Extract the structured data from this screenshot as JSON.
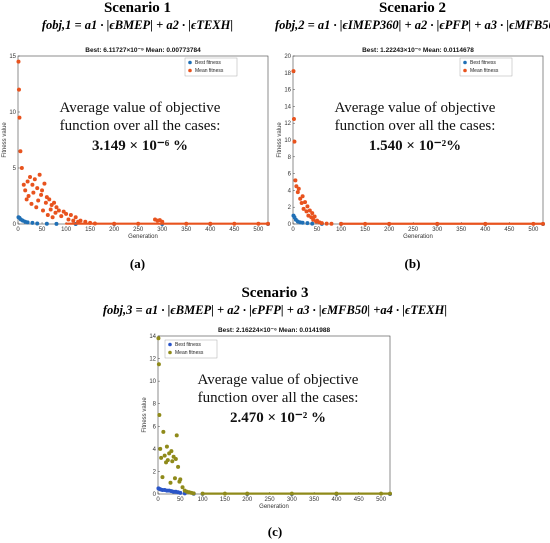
{
  "panels": [
    {
      "scenario": "Scenario 1",
      "formula": "fobj,1 = a1 · |ϵBMEP| + a2 · |ϵTEXH|",
      "caption": "(a)",
      "plot_title": "Best: 6.11727×10⁻⁹ Mean: 0.00773784",
      "annotation_line1": "Average value of objective",
      "annotation_line2": "function over all the cases:",
      "annotation_value": "3.149 × 10⁻⁶ %"
    },
    {
      "scenario": "Scenario 2",
      "formula": "fobj,2 = a1 · |ϵIMEP360| + a2 · |ϵPFP| + a3 · |ϵMFB50|",
      "caption": "(b)",
      "plot_title": "Best: 1.22243×10⁻⁶ Mean: 0.0114678",
      "annotation_line1": "Average value of objective",
      "annotation_line2": "function over all the cases:",
      "annotation_value": "1.540 × 10⁻²%"
    },
    {
      "scenario": "Scenario 3",
      "formula": "fobj,3 = a1 · |ϵBMEP| + a2 · |ϵPFP| + a3 · |ϵMFB50| +a4 · |ϵTEXH|",
      "caption": "(c)",
      "plot_title": "Best: 2.16224×10⁻⁶ Mean: 0.0141988",
      "annotation_line1": "Average value of objective",
      "annotation_line2": "function over all the cases:",
      "annotation_value": "2.470 × 10⁻² %"
    }
  ],
  "chart_data": [
    {
      "type": "scatter",
      "xlabel": "Generation",
      "ylabel": "Fitness value",
      "xlim": [
        0,
        520
      ],
      "ylim": [
        0,
        15
      ],
      "xticks": [
        0,
        50,
        100,
        150,
        200,
        250,
        300,
        350,
        400,
        450,
        500
      ],
      "yticks": [
        0,
        5,
        10,
        15
      ],
      "legend_position": "top-right",
      "series": [
        {
          "name": "Best fitness",
          "color": "#1f6fb5",
          "x": [
            1,
            3,
            6,
            10,
            15,
            20,
            30,
            40,
            60,
            80,
            120,
            200,
            300,
            400,
            520
          ],
          "y": [
            0.6,
            0.55,
            0.4,
            0.3,
            0.2,
            0.15,
            0.1,
            0.05,
            0.02,
            0.01,
            0.005,
            0.0,
            0.0,
            0.0,
            0.0
          ]
        },
        {
          "name": "Mean fitness",
          "color": "#e8531e",
          "x": [
            1,
            2,
            3,
            5,
            8,
            12,
            15,
            18,
            20,
            22,
            25,
            28,
            30,
            32,
            35,
            38,
            40,
            42,
            45,
            48,
            50,
            52,
            55,
            58,
            60,
            62,
            65,
            68,
            70,
            72,
            75,
            78,
            80,
            85,
            90,
            95,
            100,
            105,
            110,
            115,
            120,
            125,
            130,
            140,
            150,
            160,
            200,
            250,
            285,
            290,
            295,
            300,
            350,
            400,
            450,
            500,
            520
          ],
          "y": [
            14.5,
            12.0,
            9.5,
            6.5,
            5.0,
            3.5,
            3.0,
            2.2,
            3.8,
            2.5,
            4.2,
            1.8,
            3.5,
            2.8,
            4.0,
            1.5,
            3.2,
            2.1,
            4.4,
            2.6,
            3.0,
            1.2,
            3.6,
            1.9,
            2.4,
            0.8,
            2.2,
            1.3,
            1.7,
            0.6,
            1.9,
            1.0,
            1.5,
            1.2,
            0.7,
            1.1,
            0.9,
            0.4,
            0.8,
            0.3,
            0.6,
            0.2,
            0.3,
            0.2,
            0.1,
            0.05,
            0.02,
            0.02,
            0.4,
            0.3,
            0.35,
            0.2,
            0.02,
            0.02,
            0.02,
            0.02,
            0.02
          ]
        }
      ]
    },
    {
      "type": "scatter",
      "xlabel": "Generation",
      "ylabel": "Fitness value",
      "xlim": [
        0,
        520
      ],
      "ylim": [
        0,
        20
      ],
      "xticks": [
        0,
        50,
        100,
        150,
        200,
        250,
        300,
        350,
        400,
        450,
        500
      ],
      "yticks": [
        0,
        2,
        4,
        6,
        8,
        10,
        12,
        14,
        16,
        18,
        20
      ],
      "legend_position": "top-right",
      "series": [
        {
          "name": "Best fitness",
          "color": "#1f6fb5",
          "x": [
            1,
            3,
            6,
            10,
            15,
            20,
            30,
            40,
            60,
            100,
            200,
            300,
            400,
            520
          ],
          "y": [
            1.0,
            0.8,
            0.5,
            0.3,
            0.2,
            0.15,
            0.1,
            0.05,
            0.02,
            0.01,
            0.0,
            0.0,
            0.0,
            0.0
          ]
        },
        {
          "name": "Mean fitness",
          "color": "#e8531e",
          "x": [
            1,
            2,
            3,
            5,
            7,
            10,
            12,
            15,
            18,
            20,
            22,
            25,
            28,
            30,
            32,
            35,
            38,
            40,
            42,
            45,
            48,
            50,
            55,
            60,
            70,
            80,
            100,
            150,
            200,
            300,
            400,
            500,
            520
          ],
          "y": [
            18.2,
            12.5,
            9.8,
            5.2,
            4.5,
            3.8,
            4.2,
            3.0,
            2.5,
            3.3,
            1.8,
            2.6,
            1.5,
            2.1,
            1.0,
            1.6,
            0.8,
            1.3,
            0.5,
            0.9,
            0.3,
            0.4,
            0.2,
            0.1,
            0.05,
            0.03,
            0.02,
            0.02,
            0.02,
            0.02,
            0.02,
            0.02,
            0.02
          ]
        }
      ]
    },
    {
      "type": "scatter",
      "xlabel": "Generation",
      "ylabel": "Fitness value",
      "xlim": [
        0,
        520
      ],
      "ylim": [
        0,
        14
      ],
      "xticks": [
        0,
        50,
        100,
        150,
        200,
        250,
        300,
        350,
        400,
        450,
        500
      ],
      "yticks": [
        0,
        2,
        4,
        6,
        8,
        10,
        12,
        14
      ],
      "legend_position": "top-left",
      "series": [
        {
          "name": "Best fitness",
          "color": "#2a55c8",
          "x": [
            1,
            3,
            6,
            10,
            15,
            20,
            25,
            30,
            35,
            40,
            45,
            50,
            60,
            80,
            100,
            200,
            300,
            400,
            520
          ],
          "y": [
            0.5,
            0.45,
            0.4,
            0.35,
            0.35,
            0.3,
            0.3,
            0.25,
            0.2,
            0.2,
            0.15,
            0.1,
            0.05,
            0.02,
            0.01,
            0.0,
            0.0,
            0.0,
            0.0
          ]
        },
        {
          "name": "Mean fitness",
          "color": "#8f8a1a",
          "x": [
            1,
            2,
            3,
            5,
            7,
            10,
            12,
            15,
            18,
            20,
            22,
            25,
            28,
            30,
            32,
            35,
            38,
            40,
            42,
            45,
            48,
            50,
            55,
            60,
            65,
            70,
            75,
            80,
            100,
            150,
            200,
            300,
            400,
            500,
            520
          ],
          "y": [
            13.8,
            11.5,
            7.0,
            4.0,
            3.2,
            1.5,
            5.5,
            3.4,
            2.8,
            4.2,
            3.0,
            3.6,
            1.0,
            3.8,
            2.9,
            3.3,
            1.4,
            3.1,
            5.2,
            2.4,
            1.1,
            1.3,
            0.6,
            0.3,
            0.2,
            0.15,
            0.1,
            0.05,
            0.03,
            0.03,
            0.03,
            0.03,
            0.03,
            0.03,
            0.03
          ]
        }
      ]
    }
  ]
}
